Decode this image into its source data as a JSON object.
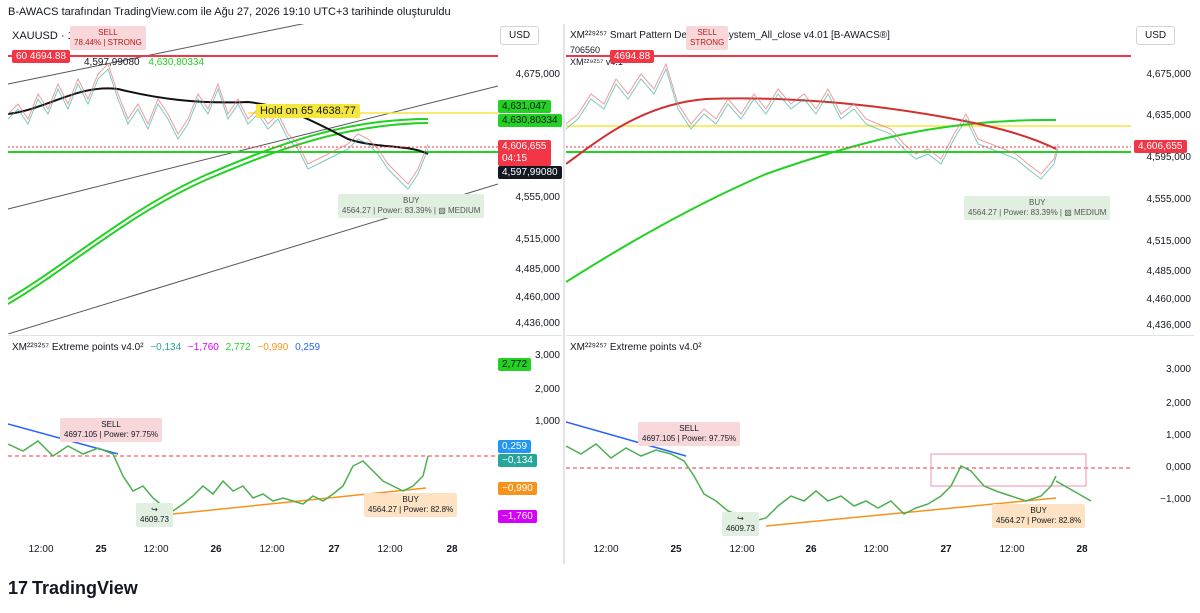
{
  "header": {
    "title": "B-AWACS tarafından TradingView.com ile Ağu 27, 2026 19:10 UTC+3 tarihinde oluşturuldu"
  },
  "footer": {
    "brand": "TradingView",
    "logo_text": "17"
  },
  "colors": {
    "red": "#f23645",
    "green": "#22d122",
    "yellow": "#f5e63b",
    "orange": "#f7931a",
    "magenta": "#d500f9",
    "blue": "#2962ff",
    "price_line": "#4caf50"
  },
  "left_top": {
    "symbol": "XAUUSD · 15 · OANDA",
    "ind_line1_value": "4,597,99080",
    "ind_line1_value2": "4,630,80334",
    "sell_badge": "60 4694.88",
    "sell_tag": "SELL",
    "sell_tag_sub": "78.44% | STRONG",
    "hold_label": "Hold on 65 4638.77",
    "buy_tag": "BUY",
    "buy_tag_sub": "4564.27 | Power: 83.39% | ▧ MEDIUM",
    "currency": "USD",
    "axis_ticks": [
      "4,675,000",
      "4,631,047",
      "4,630,80334",
      "4,606,655",
      "04:15",
      "4,597,99080",
      "4,555,000",
      "4,515,000",
      "4,485,000",
      "4,460,000",
      "4,436,000"
    ],
    "price_labels": {
      "green1": "4,631,047",
      "green2": "4,630,80334",
      "red": "4,606,655",
      "red_time": "04:15",
      "black": "4,597,99080"
    }
  },
  "left_bottom": {
    "title": "XM²²⁹²⁵⁷ Extreme points v4.0²",
    "values": [
      "−0,134",
      "−1,760",
      "2,772",
      "−0,990",
      "0,259"
    ],
    "sell_tag": "SELL",
    "sell_sub": "4697.105 | Power: 97.75%",
    "buy_tag": "BUY",
    "buy_sub": "4564.27 | Power: 82.8%",
    "pivot_label": "4609.73",
    "axis_ticks": [
      "3,000",
      "2,000",
      "1,000",
      "0,000"
    ],
    "axis_labels": {
      "green": "2,772",
      "blue": "0,259",
      "teal": "−0,134",
      "orange": "−0,990",
      "magenta": "−1,760"
    },
    "x_labels": [
      "12:00",
      "25",
      "12:00",
      "26",
      "12:00",
      "27",
      "12:00",
      "28"
    ]
  },
  "right_top": {
    "symbol": "XM²²⁹²⁵⁷ Smart Pattern Detection_System_All_close v4.01 [B-AWACS®]",
    "sub_values": "706560",
    "sub_values2": "XM²²⁹²⁵⁷ v4.1",
    "sell_badge": "4694.88",
    "sell_tag": "SELL",
    "sell_tag_sub": "STRONG",
    "buy_tag": "BUY",
    "buy_tag_sub": "4564.27 | Power: 83.39% | ▧ MEDIUM",
    "currency": "USD",
    "axis_ticks": [
      "4,675,000",
      "4,635,000",
      "4,595,000",
      "4,555,000",
      "4,515,000",
      "4,485,000",
      "4,460,000",
      "4,436,000"
    ],
    "price_label_red": "4,606,655"
  },
  "right_bottom": {
    "title": "XM²²⁹²⁵⁷ Extreme points v4.0²",
    "sell_tag": "SELL",
    "sell_sub": "4697.105 | Power: 97.75%",
    "buy_tag": "BUY",
    "buy_sub": "4564.27 | Power: 82.8%",
    "pivot_label": "4609.73",
    "axis_ticks": [
      "3,000",
      "2,000",
      "1,000",
      "0,000",
      "−1,000"
    ],
    "x_labels": [
      "12:00",
      "25",
      "12:00",
      "26",
      "12:00",
      "27",
      "12:00",
      "28"
    ]
  }
}
